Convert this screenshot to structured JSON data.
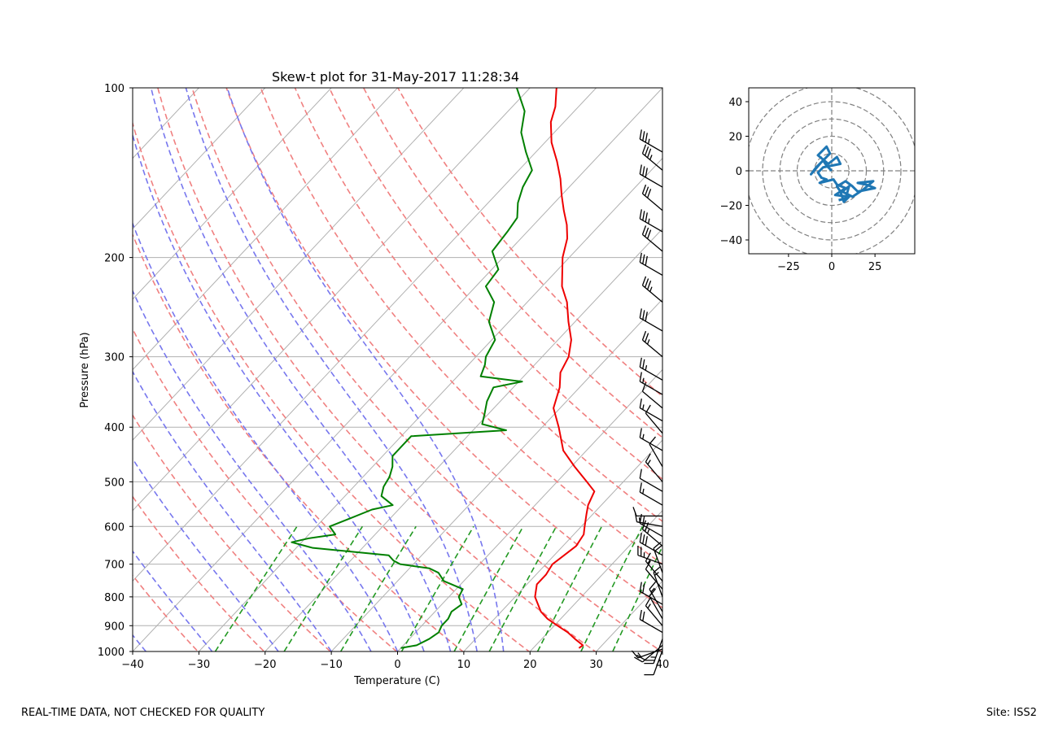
{
  "footer": {
    "left": "REAL-TIME DATA, NOT CHECKED FOR QUALITY",
    "right": "Site: ISS2"
  },
  "colors": {
    "temperature": "#ee0000",
    "dewpoint": "#008000",
    "dry_adiabat": "#f08080",
    "moist_adiabat": "#7777ee",
    "mixing_ratio": "#229922",
    "isotherm": "#b0b0b0",
    "hodograph": "#1f77b4",
    "barb": "#000000"
  },
  "chart_data": [
    {
      "type": "skew-t",
      "title": "Skew-t plot for 31-May-2017 11:28:34",
      "xlabel": "Temperature (C)",
      "ylabel": "Pressure (hPa)",
      "xlim": [
        -40,
        40
      ],
      "ylim": [
        1000,
        100
      ],
      "x_ticks": [
        -40,
        -30,
        -20,
        -10,
        0,
        10,
        20,
        30,
        40
      ],
      "y_ticks": [
        100,
        200,
        300,
        400,
        500,
        600,
        700,
        800,
        900,
        1000
      ],
      "grid": true,
      "dry_adiabats_theta_K": [
        233,
        243,
        253,
        263,
        273,
        283,
        293,
        303,
        313,
        323,
        333,
        343,
        353,
        363,
        373
      ],
      "moist_adiabats_start_C_at_1000": [
        -38,
        -28,
        -18,
        -10,
        -4,
        0,
        4,
        8,
        12,
        16
      ],
      "mixing_ratio_lines_g_per_kg": [
        0.4,
        1,
        2,
        4,
        7,
        10,
        16,
        24,
        32
      ],
      "series": [
        {
          "name": "Temperature",
          "p": [
            986,
            975,
            950,
            925,
            900,
            875,
            850,
            800,
            760,
            730,
            700,
            675,
            650,
            620,
            600,
            570,
            550,
            520,
            500,
            470,
            440,
            400,
            370,
            340,
            320,
            300,
            280,
            260,
            240,
            225,
            200,
            185,
            175,
            165,
            155,
            145,
            135,
            125,
            115,
            108,
            100
          ],
          "t": [
            26.9,
            27.1,
            25.0,
            23.0,
            20.5,
            18.0,
            16.0,
            13.0,
            11.5,
            11.5,
            11.0,
            11.5,
            12.0,
            11.5,
            10.5,
            9.0,
            8.0,
            7.0,
            4.5,
            0.5,
            -3.5,
            -7.5,
            -11.0,
            -13.0,
            -15.0,
            -16.0,
            -18.0,
            -21.0,
            -24.0,
            -27.0,
            -31.0,
            -33.0,
            -35.0,
            -37.5,
            -40.0,
            -42.5,
            -45.5,
            -49.0,
            -52.0,
            -53.5,
            -56.0
          ]
        },
        {
          "name": "Dewpoint",
          "p": [
            986,
            975,
            950,
            925,
            900,
            875,
            850,
            825,
            800,
            775,
            750,
            725,
            712,
            700,
            690,
            675,
            655,
            640,
            630,
            620,
            600,
            580,
            560,
            550,
            530,
            510,
            490,
            470,
            450,
            430,
            415,
            405,
            395,
            380,
            360,
            340,
            332,
            325,
            310,
            300,
            280,
            260,
            240,
            225,
            210,
            195,
            180,
            170,
            160,
            150,
            140,
            130,
            120,
            110,
            100
          ],
          "t": [
            0.0,
            2.0,
            3.0,
            3.5,
            3.0,
            3.0,
            2.5,
            3.0,
            1.5,
            1.0,
            -3.0,
            -5.0,
            -7.0,
            -12.0,
            -13.5,
            -15.0,
            -27.5,
            -31.5,
            -29.5,
            -26.0,
            -28.0,
            -26.0,
            -24.0,
            -21.5,
            -24.5,
            -25.5,
            -26.0,
            -27.0,
            -28.5,
            -28.5,
            -28.5,
            -15.0,
            -19.5,
            -20.5,
            -22.0,
            -23.0,
            -19.5,
            -26.5,
            -27.5,
            -28.5,
            -29.5,
            -33.0,
            -35.0,
            -38.5,
            -39.0,
            -42.5,
            -43.0,
            -43.5,
            -45.5,
            -47.0,
            -48.0,
            -51.5,
            -55.0,
            -57.5,
            -62.0
          ]
        }
      ],
      "wind_barbs": {
        "units": "kt",
        "p": [
          995,
          990,
          975,
          950,
          925,
          900,
          875,
          850,
          825,
          800,
          775,
          750,
          725,
          700,
          675,
          650,
          625,
          600,
          575,
          550,
          520,
          500,
          470,
          440,
          410,
          390,
          370,
          350,
          330,
          300,
          270,
          240,
          215,
          195,
          180,
          165,
          150,
          140,
          130
        ],
        "speed": [
          10,
          15,
          20,
          25,
          20,
          15,
          10,
          15,
          20,
          15,
          10,
          15,
          20,
          25,
          30,
          25,
          20,
          15,
          10,
          15,
          10,
          15,
          10,
          15,
          10,
          15,
          10,
          15,
          25,
          25,
          30,
          35,
          30,
          30,
          35,
          30,
          30,
          35,
          35
        ],
        "direction": [
          200,
          250,
          230,
          200,
          300,
          320,
          330,
          330,
          300,
          340,
          320,
          320,
          340,
          290,
          300,
          310,
          300,
          280,
          270,
          300,
          300,
          320,
          330,
          300,
          320,
          300,
          310,
          300,
          300,
          310,
          300,
          310,
          300,
          310,
          300,
          310,
          300,
          310,
          300
        ]
      }
    },
    {
      "type": "hodograph",
      "xlim": [
        -48,
        48
      ],
      "ylim": [
        -48,
        48
      ],
      "x_ticks": [
        -25,
        0,
        25
      ],
      "y_ticks": [
        -40,
        -20,
        0,
        20,
        40
      ],
      "ring_radii": [
        10,
        20,
        30,
        40,
        50
      ],
      "u": [
        0,
        -3,
        -5,
        -9,
        -12,
        -6,
        -1,
        -3,
        -8,
        -2,
        3,
        5,
        -5,
        -8,
        -6,
        -3,
        -7,
        1,
        3,
        8,
        5,
        2,
        10,
        7,
        5,
        3,
        8,
        12,
        15,
        25,
        20,
        15,
        24,
        18,
        12,
        6,
        10,
        8,
        4
      ],
      "v": [
        0,
        3,
        6,
        2,
        -2,
        5,
        10,
        14,
        9,
        4,
        8,
        4,
        2,
        -1,
        -4,
        -5,
        -7,
        -5,
        -8,
        -10,
        -12,
        -14,
        -15,
        -18,
        -12,
        -9,
        -6,
        -9,
        -12,
        -10,
        -8,
        -7,
        -6,
        -11,
        -15,
        -12,
        -9,
        -16,
        -17
      ]
    }
  ]
}
